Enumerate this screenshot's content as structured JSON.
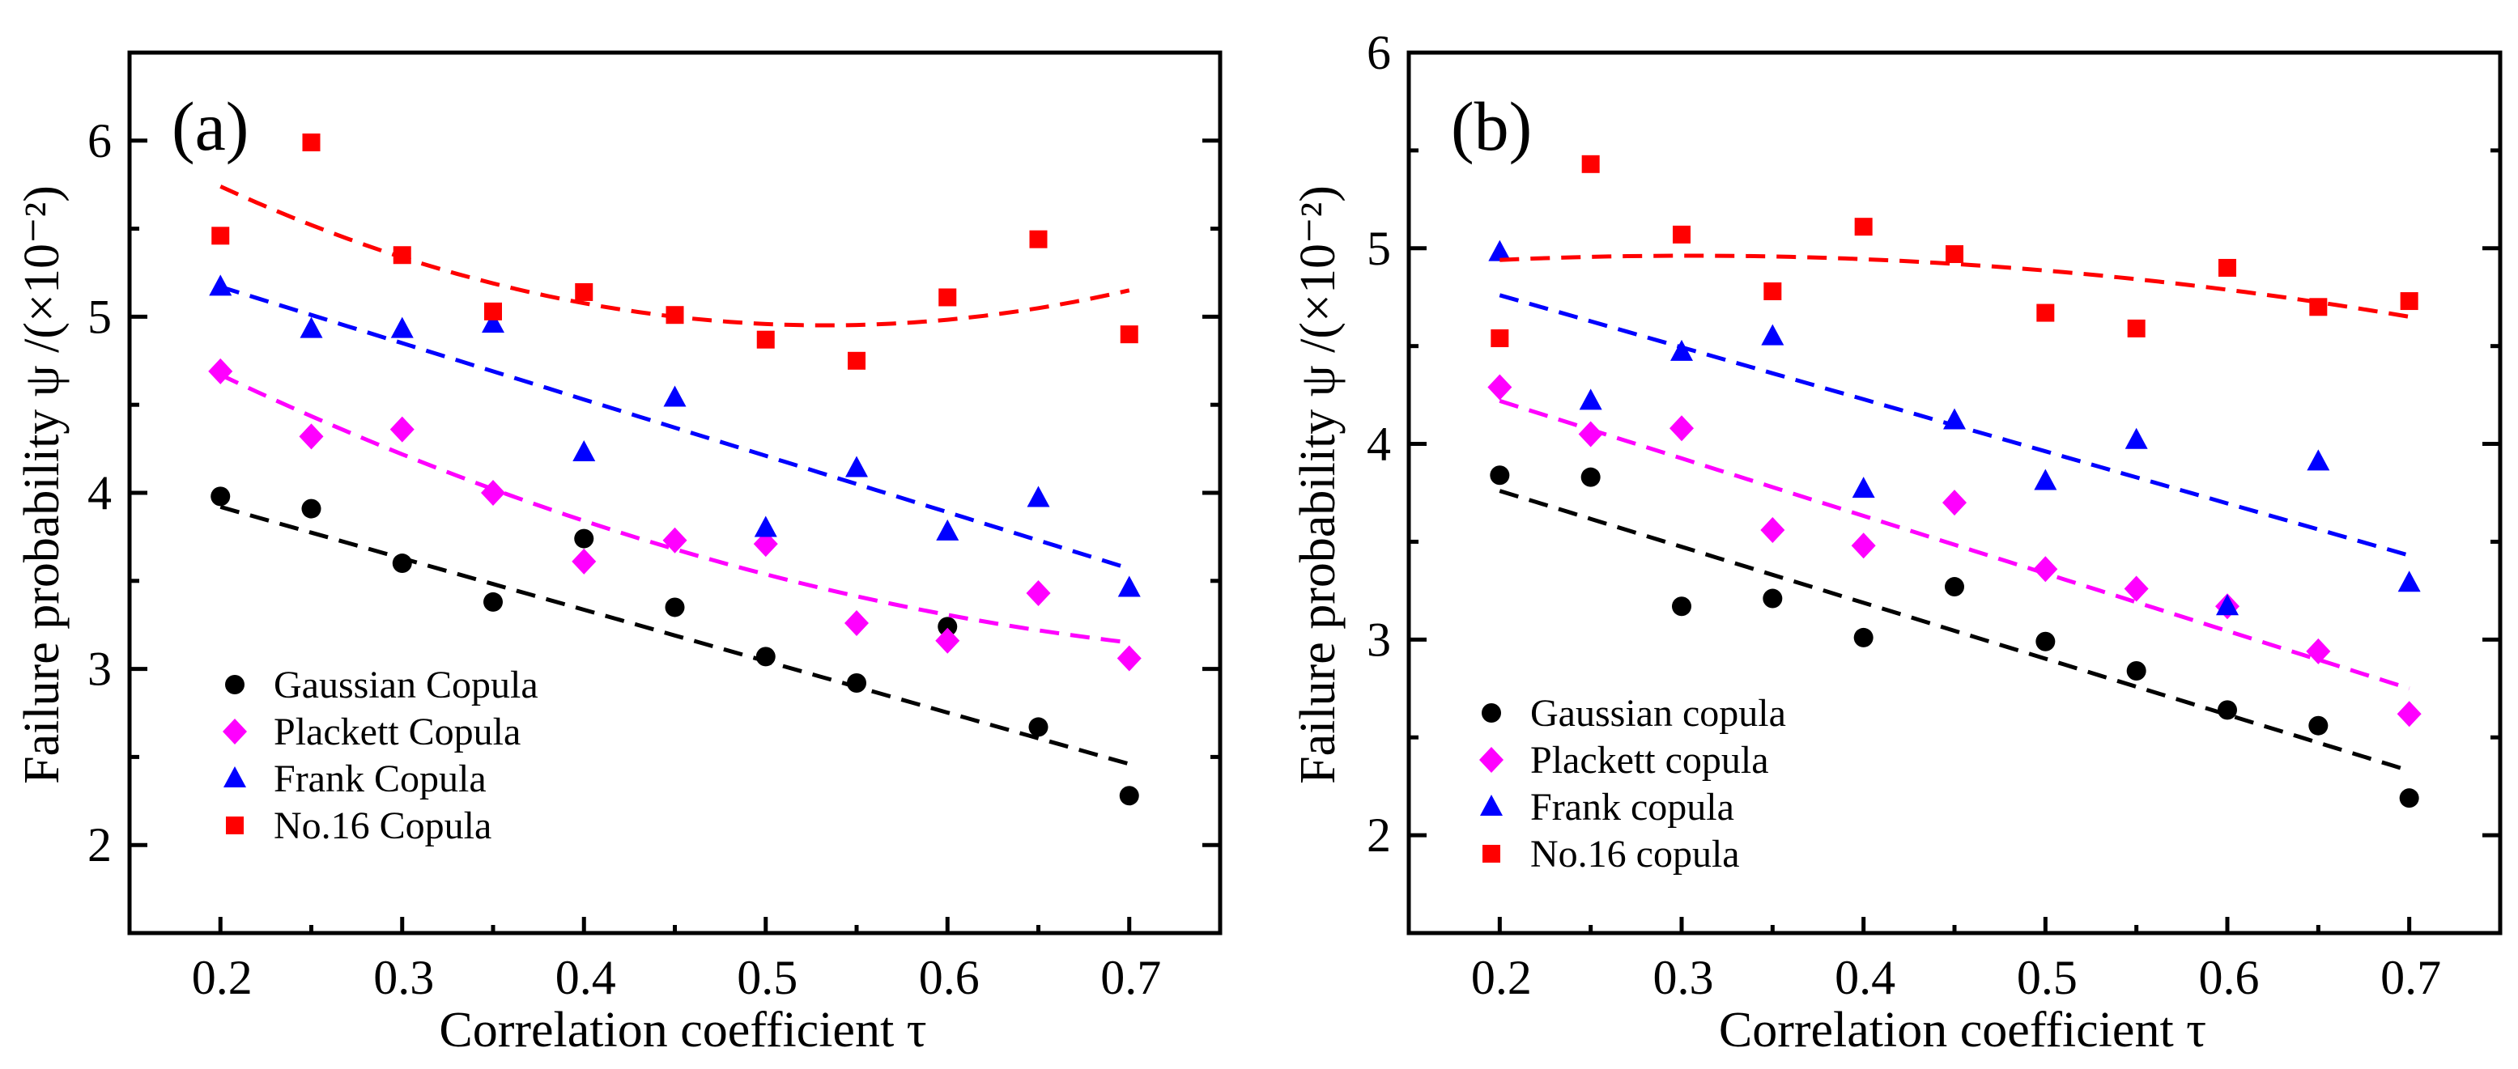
{
  "chart_data": [
    {
      "type": "scatter",
      "panel_label": "(a)",
      "xlabel": "Correlation coefficient τ",
      "ylabel": "Failure probability ψ /(×10⁻²)",
      "xlim": [
        0.15,
        0.75
      ],
      "ylim": [
        1.5,
        6.5
      ],
      "xticks": [
        "0.2",
        "0.3",
        "0.4",
        "0.5",
        "0.6",
        "0.7"
      ],
      "yticks": [
        "2",
        "3",
        "4",
        "5",
        "6"
      ],
      "legend_position": "bottom-left",
      "x": [
        0.2,
        0.25,
        0.3,
        0.35,
        0.4,
        0.45,
        0.5,
        0.55,
        0.6,
        0.65,
        0.7
      ],
      "series": [
        {
          "name": "Gaussian Copula",
          "marker": "circle",
          "color": "#000000",
          "values": [
            3.98,
            3.91,
            3.6,
            3.38,
            3.74,
            3.35,
            3.07,
            2.92,
            3.24,
            2.67,
            2.28
          ],
          "fit": {
            "type": "linear",
            "center": 0.45,
            "a": 3.19,
            "b": -2.92,
            "c": 0
          }
        },
        {
          "name": "Plackett Copula",
          "marker": "diamond",
          "color": "#ff00ff",
          "values": [
            4.69,
            4.32,
            4.36,
            4.0,
            3.61,
            3.73,
            3.71,
            3.26,
            3.16,
            3.43,
            3.06
          ],
          "fit": {
            "type": "quadratic",
            "center": 0.45,
            "a": 3.68,
            "b": -3.04,
            "c": 3.68
          }
        },
        {
          "name": "Frank Copula",
          "marker": "triangle",
          "color": "#0000ff",
          "values": [
            5.17,
            4.93,
            4.93,
            4.96,
            4.23,
            4.54,
            3.8,
            4.14,
            3.78,
            3.97,
            3.46
          ],
          "fit": {
            "type": "linear",
            "center": 0.45,
            "a": 4.37,
            "b": -3.2,
            "c": 0
          }
        },
        {
          "name": "No.16 Copula",
          "marker": "square",
          "color": "#ff0000",
          "values": [
            5.46,
            5.99,
            5.35,
            5.03,
            5.14,
            5.01,
            4.87,
            4.75,
            5.11,
            5.44,
            4.9
          ],
          "fit": {
            "type": "quadratic",
            "center": 0.45,
            "a": 5.0,
            "b": -1.18,
            "c": 7.12
          }
        }
      ]
    },
    {
      "type": "scatter",
      "panel_label": "(b)",
      "xlabel": "Correlation coefficient τ",
      "ylabel": "Failure probability ψ /(×10⁻²)",
      "xlim": [
        0.15,
        0.75
      ],
      "ylim": [
        1.5,
        6.0
      ],
      "xticks": [
        "0.2",
        "0.3",
        "0.4",
        "0.5",
        "0.6",
        "0.7"
      ],
      "yticks": [
        "2",
        "3",
        "4",
        "5",
        "6"
      ],
      "legend_position": "bottom-left",
      "x": [
        0.2,
        0.25,
        0.3,
        0.35,
        0.4,
        0.45,
        0.5,
        0.55,
        0.6,
        0.65,
        0.7
      ],
      "series": [
        {
          "name": "Gaussian copula",
          "marker": "circle",
          "color": "#000000",
          "values": [
            3.84,
            3.83,
            3.17,
            3.21,
            3.01,
            3.27,
            2.99,
            2.84,
            2.64,
            2.56,
            2.19
          ],
          "fit": {
            "type": "linear",
            "center": 0.45,
            "a": 3.045,
            "b": -2.86,
            "c": 0
          }
        },
        {
          "name": "Plackett copula",
          "marker": "diamond",
          "color": "#ff00ff",
          "values": [
            4.29,
            4.05,
            4.08,
            3.56,
            3.48,
            3.7,
            3.36,
            3.26,
            3.17,
            2.94,
            2.62
          ],
          "fit": {
            "type": "linear",
            "center": 0.45,
            "a": 3.485,
            "b": -2.94,
            "c": 0
          }
        },
        {
          "name": "Frank copula",
          "marker": "triangle",
          "color": "#0000ff",
          "values": [
            4.98,
            4.22,
            4.47,
            4.55,
            3.77,
            4.12,
            3.81,
            4.02,
            3.17,
            3.91,
            3.29
          ],
          "fit": {
            "type": "linear",
            "center": 0.45,
            "a": 4.095,
            "b": -2.66,
            "c": 0
          }
        },
        {
          "name": "No.16 copula",
          "marker": "square",
          "color": "#ff0000",
          "values": [
            4.54,
            5.43,
            5.07,
            4.78,
            5.11,
            4.97,
            4.67,
            4.59,
            4.9,
            4.7,
            4.73
          ],
          "fit": {
            "type": "quadratic",
            "center": 0.45,
            "a": 4.92,
            "b": -0.58,
            "c": -2.0
          }
        }
      ]
    }
  ]
}
